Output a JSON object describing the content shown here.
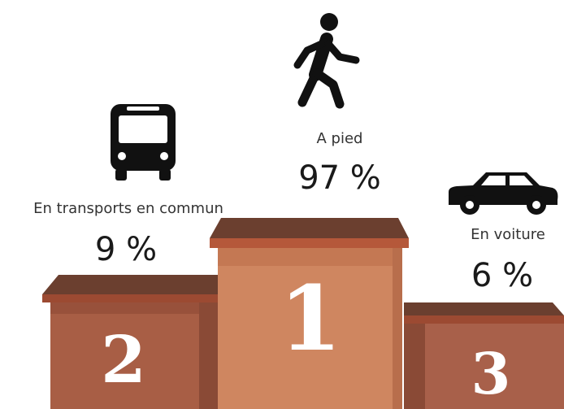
{
  "podium": {
    "items": [
      {
        "label": "A pied",
        "percent": "97 %",
        "rank": "1"
      },
      {
        "label": "En transports en commun",
        "percent": "9 %",
        "rank": "2"
      },
      {
        "label": "En voiture",
        "percent": "6 %",
        "rank": "3"
      }
    ]
  }
}
